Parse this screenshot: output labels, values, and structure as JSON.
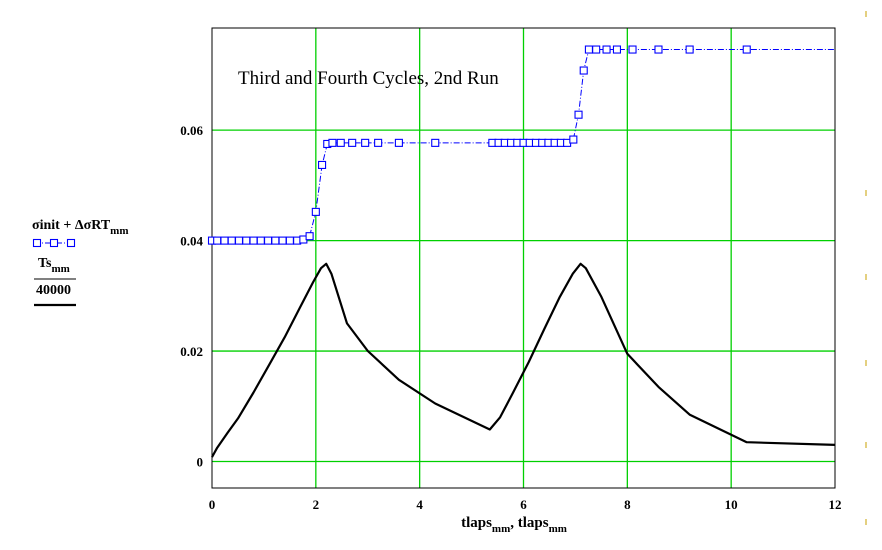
{
  "chart_data": {
    "type": "line",
    "title": "Third and Fourth Cycles, 2nd  Run",
    "xlabel": {
      "parts": [
        {
          "t": "tlaps",
          "sub": false
        },
        {
          "t": "mm",
          "sub": true
        },
        {
          "t": ", tlaps",
          "sub": false
        },
        {
          "t": "mm",
          "sub": true
        }
      ]
    },
    "xlim": [
      0,
      12
    ],
    "ylim": [
      -0.0048,
      0.0785
    ],
    "x_ticks": [
      0,
      2,
      4,
      6,
      8,
      10,
      12
    ],
    "x_tick_labels": [
      "0",
      "2",
      "4",
      "6",
      "8",
      "10",
      "12"
    ],
    "y_ticks": [
      0,
      0.02,
      0.04,
      0.06
    ],
    "y_tick_labels": [
      "0",
      "0.02",
      "0.04",
      "0.06"
    ],
    "grid": true,
    "colors": {
      "grid": "#00d000",
      "series1": "#0000ff",
      "series2": "#000000",
      "tick_marks": "#c8a000"
    },
    "legend": [
      {
        "parts": [
          {
            "t": "σinit + ΔσRT",
            "sub": false
          },
          {
            "t": "mm",
            "sub": true
          }
        ]
      },
      {
        "parts": [
          {
            "t": "Ts",
            "sub": false
          },
          {
            "t": "mm",
            "sub": true
          }
        ]
      },
      {
        "parts": [
          {
            "t": "40000",
            "sub": false
          }
        ]
      }
    ],
    "series": [
      {
        "style": "dash-dot-square-markers",
        "color": "#0000ff",
        "x": [
          0.0,
          0.1,
          0.24,
          0.38,
          0.52,
          0.66,
          0.8,
          0.94,
          1.08,
          1.22,
          1.36,
          1.5,
          1.64,
          1.76,
          1.88,
          2.0,
          2.12,
          2.22,
          2.32,
          2.48,
          2.7,
          2.95,
          3.2,
          3.6,
          4.3,
          5.4,
          5.52,
          5.64,
          5.76,
          5.88,
          6.0,
          6.12,
          6.24,
          6.36,
          6.48,
          6.6,
          6.72,
          6.84,
          6.96,
          7.06,
          7.16,
          7.26,
          7.4,
          7.6,
          7.8,
          8.1,
          8.6,
          9.2,
          10.3,
          12.0
        ],
        "y": [
          0.04,
          0.04,
          0.04,
          0.04,
          0.04,
          0.04,
          0.04,
          0.04,
          0.04,
          0.04,
          0.04,
          0.04,
          0.04,
          0.0402,
          0.0408,
          0.0452,
          0.0537,
          0.0575,
          0.0577,
          0.0577,
          0.0577,
          0.0577,
          0.0577,
          0.0577,
          0.0577,
          0.0577,
          0.0577,
          0.0577,
          0.0577,
          0.0577,
          0.0577,
          0.0577,
          0.0577,
          0.0577,
          0.0577,
          0.0577,
          0.0577,
          0.0577,
          0.0583,
          0.0628,
          0.0708,
          0.0746,
          0.0746,
          0.0746,
          0.0746,
          0.0746,
          0.0746,
          0.0746,
          0.0746,
          0.0746
        ],
        "markers": [
          0.0,
          0.1,
          0.24,
          0.38,
          0.52,
          0.66,
          0.8,
          0.94,
          1.08,
          1.22,
          1.36,
          1.5,
          1.64,
          1.76,
          1.88,
          2.0,
          2.12,
          2.22,
          2.32,
          2.48,
          2.7,
          2.95,
          3.2,
          3.6,
          4.3,
          5.4,
          5.52,
          5.64,
          5.76,
          5.88,
          6.0,
          6.12,
          6.24,
          6.36,
          6.48,
          6.6,
          6.72,
          6.84,
          6.96,
          7.06,
          7.16,
          7.26,
          7.4,
          7.6,
          7.8,
          8.1,
          8.6,
          9.2,
          10.3
        ]
      },
      {
        "style": "solid",
        "color": "#000000",
        "x": [
          0.0,
          0.1,
          0.3,
          0.5,
          0.8,
          1.1,
          1.4,
          1.7,
          1.95,
          2.1,
          2.2,
          2.3,
          2.6,
          3.0,
          3.6,
          4.3,
          5.35,
          5.55,
          5.8,
          6.1,
          6.4,
          6.7,
          6.95,
          7.1,
          7.2,
          7.5,
          8.0,
          8.6,
          9.2,
          10.3,
          12.0
        ],
        "y": [
          0.0008,
          0.0025,
          0.0052,
          0.0078,
          0.0125,
          0.0175,
          0.0225,
          0.028,
          0.0325,
          0.035,
          0.0358,
          0.034,
          0.025,
          0.02,
          0.0148,
          0.0105,
          0.0058,
          0.008,
          0.0125,
          0.018,
          0.024,
          0.0298,
          0.034,
          0.0358,
          0.035,
          0.0298,
          0.0195,
          0.0135,
          0.0085,
          0.0035,
          0.003
        ]
      }
    ]
  }
}
